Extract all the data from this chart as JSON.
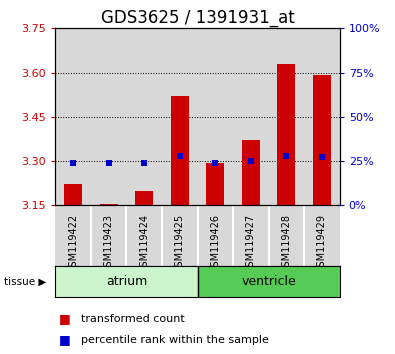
{
  "title": "GDS3625 / 1391931_at",
  "samples": [
    "GSM119422",
    "GSM119423",
    "GSM119424",
    "GSM119425",
    "GSM119426",
    "GSM119427",
    "GSM119428",
    "GSM119429"
  ],
  "red_values": [
    3.222,
    3.155,
    3.197,
    3.522,
    3.295,
    3.372,
    3.63,
    3.592
  ],
  "blue_values": [
    3.295,
    3.293,
    3.293,
    3.316,
    3.293,
    3.3,
    3.317,
    3.315
  ],
  "y_min": 3.15,
  "y_max": 3.75,
  "y_ticks_left": [
    3.15,
    3.3,
    3.45,
    3.6,
    3.75
  ],
  "y_ticks_right": [
    0,
    25,
    50,
    75,
    100
  ],
  "bar_color": "#cc0000",
  "marker_color": "#0000cc",
  "bar_baseline": 3.15,
  "left_tick_color": "#cc0000",
  "right_tick_color": "#0000cc",
  "title_fontsize": 12,
  "tick_fontsize": 8,
  "sample_fontsize": 7,
  "atrium_color_light": "#ccf5cc",
  "atrium_color": "#ccf5cc",
  "ventricle_color": "#55cc55",
  "col_bg": "#d8d8d8",
  "plot_bg": "#ffffff",
  "grid_dotted_color": "#000000",
  "n_atrium": 4,
  "n_ventricle": 4
}
